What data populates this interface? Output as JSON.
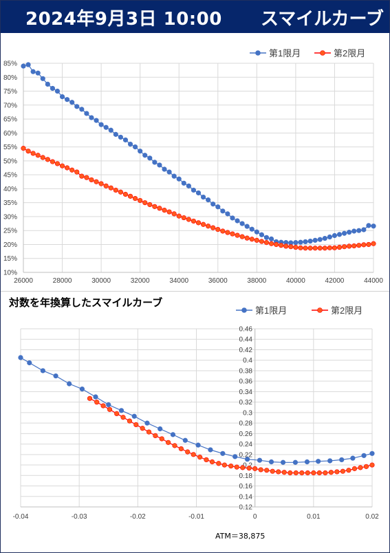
{
  "header": {
    "date": "2024年9月3日 10:00",
    "title": "スマイルカーブ"
  },
  "colors": {
    "series1": "#4472c4",
    "series2": "#ff0000",
    "series2_fill": "#ff5a1e",
    "header_bg": "#06266b"
  },
  "chart_data": [
    {
      "type": "line",
      "title": "",
      "legend": "top-right",
      "grid": true,
      "xlim": [
        26000,
        44000
      ],
      "ylim": [
        0.1,
        0.85
      ],
      "x_ticks": [
        "26000",
        "28000",
        "30000",
        "32000",
        "34000",
        "36000",
        "38000",
        "40000",
        "42000",
        "44000"
      ],
      "y_ticks": [
        "10%",
        "15%",
        "20%",
        "25%",
        "30%",
        "35%",
        "40%",
        "45%",
        "50%",
        "55%",
        "60%",
        "65%",
        "70%",
        "75%",
        "80%",
        "85%"
      ],
      "series": [
        {
          "name": "第1限月",
          "x": [
            26000,
            26250,
            26500,
            26750,
            27000,
            27250,
            27500,
            27750,
            28000,
            28250,
            28500,
            28750,
            29000,
            29250,
            29500,
            29750,
            30000,
            30250,
            30500,
            30750,
            31000,
            31250,
            31500,
            31750,
            32000,
            32250,
            32500,
            32750,
            33000,
            33250,
            33500,
            33750,
            34000,
            34250,
            34500,
            34750,
            35000,
            35250,
            35500,
            35750,
            36000,
            36250,
            36500,
            36750,
            37000,
            37250,
            37500,
            37750,
            38000,
            38250,
            38500,
            38750,
            39000,
            39250,
            39500,
            39750,
            40000,
            40250,
            40500,
            40750,
            41000,
            41250,
            41500,
            41750,
            42000,
            42250,
            42500,
            42750,
            43000,
            43250,
            43500,
            43750,
            44000
          ],
          "y": [
            0.84,
            0.845,
            0.82,
            0.815,
            0.795,
            0.775,
            0.76,
            0.75,
            0.73,
            0.72,
            0.71,
            0.695,
            0.685,
            0.67,
            0.655,
            0.645,
            0.63,
            0.62,
            0.61,
            0.595,
            0.585,
            0.575,
            0.56,
            0.55,
            0.535,
            0.52,
            0.51,
            0.495,
            0.485,
            0.47,
            0.46,
            0.445,
            0.435,
            0.42,
            0.41,
            0.395,
            0.385,
            0.37,
            0.36,
            0.345,
            0.335,
            0.32,
            0.31,
            0.295,
            0.285,
            0.275,
            0.265,
            0.255,
            0.245,
            0.235,
            0.225,
            0.22,
            0.21,
            0.208,
            0.207,
            0.206,
            0.207,
            0.208,
            0.21,
            0.212,
            0.215,
            0.218,
            0.222,
            0.227,
            0.232,
            0.236,
            0.24,
            0.244,
            0.248,
            0.25,
            0.253,
            0.268,
            0.266
          ]
        },
        {
          "name": "第2限月",
          "x": [
            26000,
            26250,
            26500,
            26750,
            27000,
            27250,
            27500,
            27750,
            28000,
            28250,
            28500,
            28750,
            29000,
            29250,
            29500,
            29750,
            30000,
            30250,
            30500,
            30750,
            31000,
            31250,
            31500,
            31750,
            32000,
            32250,
            32500,
            32750,
            33000,
            33250,
            33500,
            33750,
            34000,
            34250,
            34500,
            34750,
            35000,
            35250,
            35500,
            35750,
            36000,
            36250,
            36500,
            36750,
            37000,
            37250,
            37500,
            37750,
            38000,
            38250,
            38500,
            38750,
            39000,
            39250,
            39500,
            39750,
            40000,
            40250,
            40500,
            40750,
            41000,
            41250,
            41500,
            41750,
            42000,
            42250,
            42500,
            42750,
            43000,
            43250,
            43500,
            43750,
            44000
          ],
          "y": [
            0.545,
            0.535,
            0.527,
            0.52,
            0.512,
            0.505,
            0.497,
            0.49,
            0.482,
            0.475,
            0.467,
            0.46,
            0.445,
            0.44,
            0.432,
            0.425,
            0.418,
            0.41,
            0.403,
            0.395,
            0.388,
            0.38,
            0.373,
            0.365,
            0.358,
            0.35,
            0.343,
            0.336,
            0.33,
            0.323,
            0.317,
            0.31,
            0.302,
            0.296,
            0.29,
            0.284,
            0.278,
            0.272,
            0.266,
            0.26,
            0.254,
            0.248,
            0.243,
            0.238,
            0.233,
            0.228,
            0.223,
            0.219,
            0.215,
            0.211,
            0.207,
            0.203,
            0.2,
            0.197,
            0.194,
            0.192,
            0.19,
            0.188,
            0.187,
            0.187,
            0.187,
            0.187,
            0.187,
            0.188,
            0.188,
            0.19,
            0.192,
            0.194,
            0.195,
            0.197,
            0.199,
            0.2,
            0.203
          ]
        }
      ]
    },
    {
      "type": "line",
      "title": "対数を年換算したスマイルカーブ",
      "legend": "top-right",
      "grid": true,
      "xlim": [
        -0.04,
        0.02
      ],
      "ylim": [
        0.12,
        0.46
      ],
      "x_ticks": [
        "-0.04",
        "-0.03",
        "-0.02",
        "-0.01",
        "0",
        "0.01",
        "0.02"
      ],
      "y_ticks": [
        "0.12",
        "0.14",
        "0.16",
        "0.18",
        "0.2",
        "0.22",
        "0.24",
        "0.26",
        "0.28",
        "0.3",
        "0.32",
        "0.34",
        "0.36",
        "0.38",
        "0.4",
        "0.42",
        "0.44",
        "0.46"
      ],
      "annotation": "ATM＝38,875",
      "series": [
        {
          "name": "第1限月",
          "x": [
            -0.04,
            -0.0385,
            -0.0362,
            -0.034,
            -0.0317,
            -0.0295,
            -0.0272,
            -0.025,
            -0.0228,
            -0.0206,
            -0.0184,
            -0.0162,
            -0.014,
            -0.0119,
            -0.0097,
            -0.0076,
            -0.0055,
            -0.0034,
            -0.0013,
            0.0008,
            0.0028,
            0.0048,
            0.0069,
            0.0089,
            0.0108,
            0.0128,
            0.0148,
            0.0167,
            0.0186,
            0.02
          ],
          "y": [
            0.405,
            0.395,
            0.38,
            0.37,
            0.355,
            0.345,
            0.33,
            0.315,
            0.304,
            0.293,
            0.28,
            0.269,
            0.258,
            0.247,
            0.238,
            0.229,
            0.222,
            0.216,
            0.211,
            0.209,
            0.206,
            0.205,
            0.205,
            0.206,
            0.207,
            0.208,
            0.21,
            0.213,
            0.218,
            0.222
          ]
        },
        {
          "name": "第2限月",
          "x": [
            -0.0282,
            -0.027,
            -0.0259,
            -0.0248,
            -0.0236,
            -0.0225,
            -0.0214,
            -0.0203,
            -0.0192,
            -0.0181,
            -0.017,
            -0.0159,
            -0.0148,
            -0.0137,
            -0.0126,
            -0.0115,
            -0.0105,
            -0.0094,
            -0.0083,
            -0.0073,
            -0.0062,
            -0.0052,
            -0.0041,
            -0.0031,
            -0.0021,
            -0.001,
            0.0,
            0.001,
            0.002,
            0.003,
            0.004,
            0.005,
            0.006,
            0.007,
            0.008,
            0.009,
            0.01,
            0.011,
            0.012,
            0.013,
            0.014,
            0.015,
            0.016,
            0.017,
            0.018,
            0.019,
            0.02
          ],
          "y": [
            0.327,
            0.32,
            0.313,
            0.306,
            0.298,
            0.291,
            0.284,
            0.277,
            0.27,
            0.263,
            0.256,
            0.25,
            0.243,
            0.237,
            0.231,
            0.225,
            0.22,
            0.215,
            0.21,
            0.206,
            0.203,
            0.2,
            0.198,
            0.196,
            0.195,
            0.194,
            0.193,
            0.191,
            0.19,
            0.188,
            0.187,
            0.186,
            0.185,
            0.185,
            0.185,
            0.185,
            0.185,
            0.185,
            0.185,
            0.186,
            0.187,
            0.188,
            0.19,
            0.193,
            0.195,
            0.197,
            0.2
          ]
        }
      ]
    }
  ]
}
